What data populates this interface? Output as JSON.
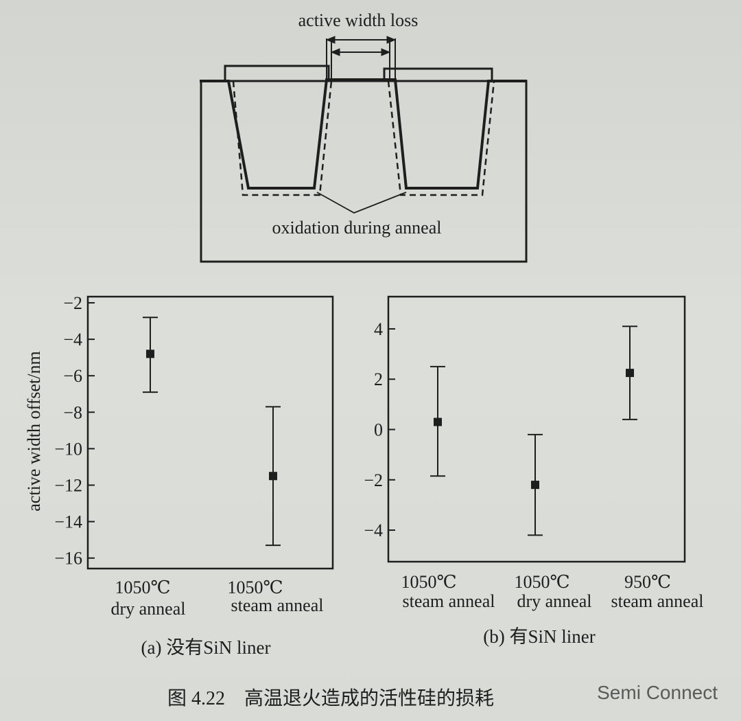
{
  "figure": {
    "schematic": {
      "top_label": "active width loss",
      "bottom_label": "oxidation during anneal"
    },
    "caption": "图 4.22　高温退火造成的活性硅的损耗",
    "watermark": "Semi Connect"
  },
  "chart_data": [
    {
      "type": "scatter",
      "error_bars": true,
      "title": "",
      "caption": "(a) 没有SiN liner",
      "ylabel": "active width offset/nm",
      "xlabel": "",
      "ylim": [
        -16.5,
        -2
      ],
      "yticks": [
        -2,
        -4,
        -6,
        -8,
        -10,
        -12,
        -14,
        -16
      ],
      "categories": [
        [
          "1050℃",
          "dry anneal"
        ],
        [
          "1050℃",
          "steam anneal"
        ]
      ],
      "values": [
        -4.8,
        -11.5
      ],
      "errors_low": [
        -6.9,
        -15.3
      ],
      "errors_high": [
        -2.8,
        -7.7
      ],
      "grid": false
    },
    {
      "type": "scatter",
      "error_bars": true,
      "title": "",
      "caption": "(b) 有SiN liner",
      "ylabel": "",
      "xlabel": "",
      "ylim": [
        -5.2,
        5.2
      ],
      "yticks": [
        4,
        2,
        0,
        -2,
        -4
      ],
      "categories": [
        [
          "1050℃",
          "steam anneal"
        ],
        [
          "1050℃",
          "dry anneal"
        ],
        [
          "950℃",
          "steam anneal"
        ]
      ],
      "values": [
        0.3,
        -2.2,
        2.25
      ],
      "errors_low": [
        -1.85,
        -4.2,
        0.4
      ],
      "errors_high": [
        2.5,
        -0.2,
        4.1
      ],
      "grid": false
    }
  ]
}
